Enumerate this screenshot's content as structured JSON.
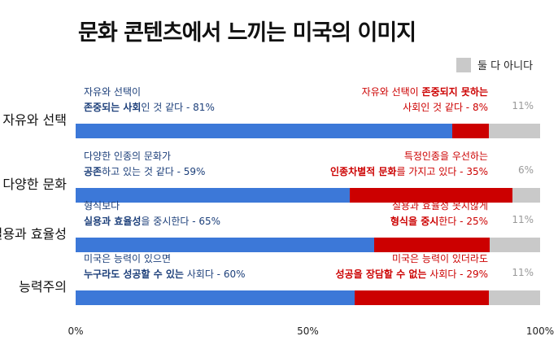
{
  "chart_data": {
    "type": "bar",
    "stacked": true,
    "orientation": "horizontal",
    "title": "문화 콘텐츠에서 느끼는 미국의 이미지",
    "legend": {
      "position": "top-right",
      "entries": [
        {
          "label": "둘 다 아니다",
          "color": "#c9c9c9"
        }
      ]
    },
    "xlim": [
      0,
      100
    ],
    "x_ticks": [
      "0%",
      "50%",
      "100%"
    ],
    "colors": {
      "positive": "#3c78d8",
      "negative": "#cc0000",
      "neither": "#c9c9c9"
    },
    "rows": [
      {
        "category": "자유와 선택",
        "values": [
          81,
          8,
          11
        ],
        "left_line1": "자유와 선택이",
        "left_bold": "존중되는 사회",
        "left_rest": "인 것 같다 - 81%",
        "right_pre": "자유와 선택이 ",
        "right_bold": "존중되지 못하는",
        "right_line2": "사회인 것 같다 - 8%",
        "other_label": "11%"
      },
      {
        "category": "다양한 문화",
        "values": [
          59,
          35,
          6
        ],
        "left_line1": "다양한 인종의 문화가",
        "left_bold": "공존",
        "left_rest": "하고 있는 것 같다 - 59%",
        "right_pre": "특정인종을 우선하는",
        "right_bold": "인종차별적 문화",
        "right_line2": "를 가지고 있다 - 35%",
        "other_label": "6%"
      },
      {
        "category": "실용과 효율성",
        "values": [
          65,
          25,
          11
        ],
        "left_line1": "형식보다",
        "left_bold": "실용과 효율성",
        "left_rest": "을 중시한다 - 65%",
        "right_pre": "실용과 효율성 못지않게",
        "right_bold": "형식을 중시",
        "right_line2": "한다 - 25%",
        "other_label": "11%"
      },
      {
        "category": "능력주의",
        "values": [
          60,
          29,
          11
        ],
        "left_line1": "미국은 능력이 있으면",
        "left_bold": "누구라도 성공할 수 있는",
        "left_rest": " 사회다 - 60%",
        "right_pre": "미국은 능력이 있더라도",
        "right_bold": "성공을 장담할 수 없는",
        "right_line2": " 사회다 - 29%",
        "other_label": "11%"
      }
    ]
  }
}
